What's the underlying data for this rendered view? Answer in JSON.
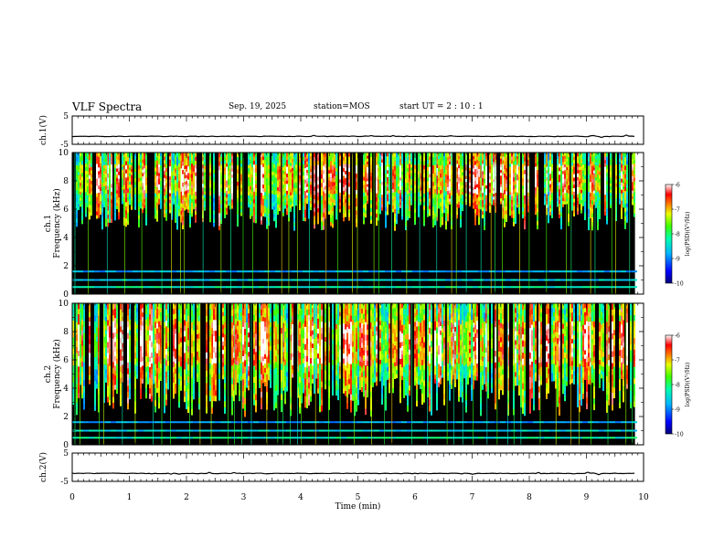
{
  "header": {
    "title": "VLF Spectra",
    "date": "Sep. 19, 2025",
    "station": "station=MOS",
    "start_ut": "start  UT =   2 : 10 : 1"
  },
  "chart_data": [
    {
      "type": "line",
      "name": "ch1-waveform",
      "ylabel": "ch.1(V)",
      "ylim": [
        -5,
        5
      ],
      "yticks": [
        5,
        -5
      ],
      "xlim": [
        0,
        10
      ],
      "data_end_min": 9.85,
      "baseline_v": -2.2
    },
    {
      "type": "heatmap",
      "name": "ch1-spectrogram",
      "ylabel_lines": [
        "ch.1",
        "Frequency (kHz)"
      ],
      "ylim": [
        0,
        10
      ],
      "yticks": [
        "0",
        "2",
        "4",
        "6",
        "8",
        "10"
      ],
      "xlim": [
        0,
        10
      ],
      "data_end_min": 9.85,
      "emission_band_khz": [
        4.5,
        10
      ],
      "peak_band_khz": [
        7,
        9
      ],
      "colorbar": {
        "label": "log(PSD)(V²/Hz)",
        "ticks": [
          "-6",
          "-7",
          "-8",
          "-9",
          "-10"
        ],
        "range": [
          -10,
          -6
        ]
      }
    },
    {
      "type": "heatmap",
      "name": "ch2-spectrogram",
      "ylabel_lines": [
        "ch.2",
        "Frequency (kHz)"
      ],
      "ylim": [
        0,
        10
      ],
      "yticks": [
        "0",
        "2",
        "4",
        "6",
        "8",
        "10"
      ],
      "xlim": [
        0,
        10
      ],
      "data_end_min": 9.85,
      "emission_band_khz": [
        2,
        10
      ],
      "peak_band_khz": [
        5.5,
        8.5
      ],
      "colorbar": {
        "label": "log(PSD)(V²/Hz)",
        "ticks": [
          "-6",
          "-7",
          "-8",
          "-9",
          "-10"
        ],
        "range": [
          -10,
          -6
        ]
      }
    },
    {
      "type": "line",
      "name": "ch2-waveform",
      "ylabel": "ch.2(V)",
      "ylim": [
        -5,
        5
      ],
      "yticks": [
        5,
        -5
      ],
      "xlim": [
        0,
        10
      ],
      "data_end_min": 9.85,
      "baseline_v": -2.2
    }
  ],
  "xaxis": {
    "label": "Time  (min)",
    "ticks": [
      "0",
      "1",
      "2",
      "3",
      "4",
      "5",
      "6",
      "7",
      "8",
      "9",
      "10"
    ]
  },
  "colors": {
    "background": "#000000",
    "axis": "#000000"
  }
}
